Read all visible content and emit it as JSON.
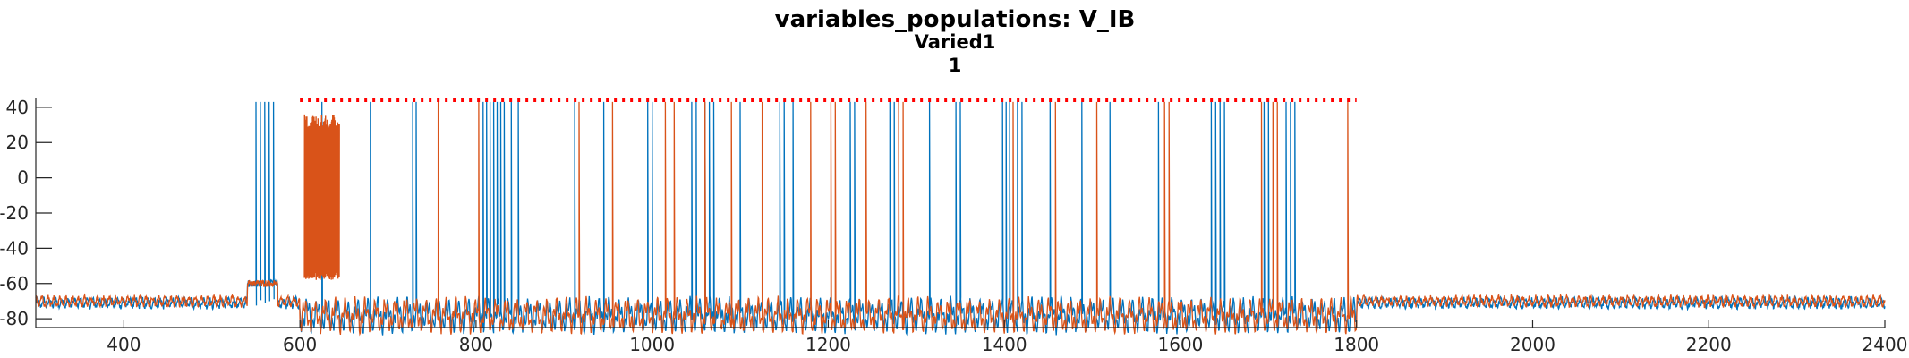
{
  "chart_data": {
    "type": "line",
    "title": "variables_populations: V_IB",
    "subtitle": "Varied1",
    "subtitle2": "1",
    "xlabel": "",
    "ylabel": "",
    "xlim": [
      300,
      2400
    ],
    "ylim": [
      -85,
      45
    ],
    "xticks": [
      400,
      600,
      800,
      1000,
      1200,
      1400,
      1600,
      1800,
      2000,
      2200,
      2400
    ],
    "yticks": [
      40,
      20,
      0,
      -20,
      -40,
      -60,
      -80
    ],
    "grid": false,
    "legend": "none",
    "series": [
      {
        "color": "#0072BD",
        "baseline": -71,
        "spikes": [
          550,
          555,
          560,
          565,
          570,
          625,
          680,
          728,
          732,
          808,
          812,
          816,
          820,
          824,
          828,
          832,
          840,
          848,
          912,
          945,
          995,
          1000,
          1045,
          1050,
          1060,
          1065,
          1070,
          1100,
          1145,
          1150,
          1160,
          1225,
          1230,
          1270,
          1275,
          1315,
          1345,
          1350,
          1398,
          1402,
          1406,
          1415,
          1420,
          1452,
          1488,
          1520,
          1575,
          1635,
          1640,
          1645,
          1650,
          1695,
          1700,
          1720,
          1725,
          1730
        ]
      },
      {
        "color": "#D95319",
        "baseline": -70,
        "spikes": [
          757,
          803,
          917,
          955,
          1015,
          1025,
          1060,
          1090,
          1125,
          1180,
          1203,
          1208,
          1243,
          1280,
          1285,
          1410,
          1458,
          1505,
          1582,
          1587,
          1692,
          1705,
          1710,
          1790
        ]
      },
      {
        "color": "#D95319",
        "burst_start": 605,
        "burst_end": 645,
        "burst_high": 30,
        "burst_low": -55
      }
    ],
    "reference_line": {
      "y": 44,
      "x_start": 600,
      "x_end": 1800,
      "color": "#FF0000",
      "style": "dotted"
    }
  }
}
